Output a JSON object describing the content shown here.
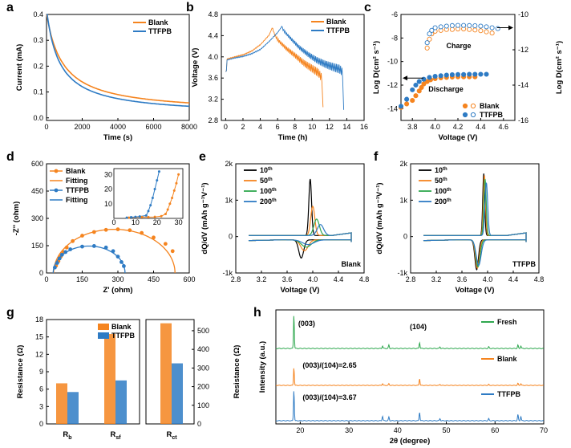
{
  "colors": {
    "blank": "#F5841F",
    "ttfpb": "#2E7BC4",
    "fresh": "#2FA84F",
    "black": "#000000"
  },
  "chart_data": [
    {
      "id": "a",
      "letter": "a",
      "type": "line",
      "xlabel": "Time (s)",
      "ylabel": "Current (mA)",
      "xlim": [
        0,
        8000
      ],
      "ylim": [
        -0.01,
        0.4
      ],
      "xticks": [
        0,
        2000,
        4000,
        6000,
        8000
      ],
      "yticks": [
        0.0,
        0.1,
        0.2,
        0.3,
        0.4
      ],
      "series": [
        {
          "name": "Blank",
          "color_key": "blank",
          "model": "decay",
          "params": {
            "a": 0.405,
            "tau": 900,
            "c": 0.018,
            "p": 0.62
          }
        },
        {
          "name": "TTFPB",
          "color_key": "ttfpb",
          "model": "decay",
          "params": {
            "a": 0.42,
            "tau": 700,
            "c": 0.008,
            "p": 0.6
          }
        }
      ],
      "legend": [
        "Blank",
        "TTFPB"
      ]
    },
    {
      "id": "b",
      "letter": "b",
      "type": "line",
      "xlabel": "Time (h)",
      "ylabel": "Voltage (V)",
      "xlim": [
        -0.5,
        16
      ],
      "ylim": [
        2.8,
        4.8
      ],
      "xticks": [
        0,
        2,
        4,
        6,
        8,
        10,
        12,
        14,
        16
      ],
      "yticks": [
        2.8,
        3.2,
        3.6,
        4.0,
        4.4,
        4.8
      ],
      "series": [
        {
          "name": "Blank",
          "color_key": "blank",
          "points": [
            [
              0,
              3.72
            ],
            [
              0.05,
              3.95
            ],
            [
              1,
              3.99
            ],
            [
              2,
              4.03
            ],
            [
              3,
              4.1
            ],
            [
              4,
              4.22
            ],
            [
              5,
              4.4
            ],
            [
              5.4,
              4.56
            ],
            [
              5.6,
              4.46
            ],
            [
              6,
              4.35
            ],
            [
              7,
              4.2
            ],
            [
              8,
              4.08
            ],
            [
              9,
              3.95
            ],
            [
              10,
              3.85
            ],
            [
              10.7,
              3.78
            ],
            [
              11.1,
              3.68
            ],
            [
              11.25,
              3.05
            ]
          ]
        },
        {
          "name": "TTFPB",
          "color_key": "ttfpb",
          "points": [
            [
              0,
              3.72
            ],
            [
              0.05,
              3.93
            ],
            [
              1,
              3.97
            ],
            [
              2,
              4.0
            ],
            [
              3,
              4.05
            ],
            [
              4,
              4.13
            ],
            [
              5,
              4.28
            ],
            [
              6,
              4.45
            ],
            [
              6.5,
              4.57
            ],
            [
              6.8,
              4.5
            ],
            [
              7.5,
              4.38
            ],
            [
              8.5,
              4.22
            ],
            [
              9.5,
              4.1
            ],
            [
              10.5,
              4.0
            ],
            [
              11.5,
              3.93
            ],
            [
              12.5,
              3.88
            ],
            [
              13.2,
              3.85
            ],
            [
              13.5,
              3.78
            ],
            [
              13.65,
              3.0
            ]
          ]
        }
      ],
      "legend": [
        "Blank",
        "TTFPB"
      ]
    },
    {
      "id": "c",
      "letter": "c",
      "type": "scatter",
      "xlabel": "Voltage (V)",
      "ylabel": "Log D(cm² s⁻¹)",
      "y2label": "Log D(cm² s⁻¹)",
      "xlim": [
        3.7,
        4.7
      ],
      "ylim": [
        -15,
        -6
      ],
      "y2lim": [
        -16,
        -10
      ],
      "xticks": [
        3.8,
        4.0,
        4.2,
        4.4,
        4.6
      ],
      "yticks": [
        -14,
        -12,
        -10,
        -8,
        -6
      ],
      "y2ticks": [
        -16,
        -14,
        -12,
        -10
      ],
      "annotations": [
        "Charge",
        "Discharge"
      ],
      "series": [
        {
          "name": "Blank",
          "color_key": "blank",
          "filled": false,
          "axis": "right",
          "points": [
            [
              3.93,
              -11.9
            ],
            [
              3.95,
              -11.4
            ],
            [
              3.97,
              -11.1
            ],
            [
              4.0,
              -10.95
            ],
            [
              4.05,
              -10.9
            ],
            [
              4.1,
              -10.85
            ],
            [
              4.15,
              -10.85
            ],
            [
              4.2,
              -10.82
            ],
            [
              4.25,
              -10.82
            ],
            [
              4.3,
              -10.85
            ],
            [
              4.35,
              -10.88
            ],
            [
              4.4,
              -10.92
            ],
            [
              4.45,
              -10.98
            ],
            [
              4.5,
              -11.05
            ]
          ]
        },
        {
          "name": "TTFPB",
          "color_key": "ttfpb",
          "filled": false,
          "axis": "right",
          "points": [
            [
              3.93,
              -11.6
            ],
            [
              3.95,
              -11.1
            ],
            [
              3.97,
              -10.9
            ],
            [
              4.0,
              -10.75
            ],
            [
              4.05,
              -10.7
            ],
            [
              4.1,
              -10.66
            ],
            [
              4.15,
              -10.63
            ],
            [
              4.2,
              -10.62
            ],
            [
              4.25,
              -10.62
            ],
            [
              4.3,
              -10.63
            ],
            [
              4.35,
              -10.64
            ],
            [
              4.4,
              -10.66
            ],
            [
              4.45,
              -10.7
            ],
            [
              4.5,
              -10.75
            ],
            [
              4.55,
              -10.8
            ]
          ]
        },
        {
          "name": "Blank",
          "color_key": "blank",
          "filled": true,
          "axis": "left",
          "points": [
            [
              3.7,
              -13.9
            ],
            [
              3.75,
              -13.6
            ],
            [
              3.8,
              -13.3
            ],
            [
              3.83,
              -12.9
            ],
            [
              3.86,
              -12.5
            ],
            [
              3.88,
              -12.2
            ],
            [
              3.9,
              -11.9
            ],
            [
              3.93,
              -11.7
            ],
            [
              3.96,
              -11.55
            ],
            [
              4.0,
              -11.45
            ],
            [
              4.05,
              -11.38
            ],
            [
              4.1,
              -11.35
            ],
            [
              4.15,
              -11.32
            ],
            [
              4.2,
              -11.3
            ],
            [
              4.25,
              -11.3
            ],
            [
              4.3,
              -11.3
            ],
            [
              4.35,
              -11.3
            ]
          ]
        },
        {
          "name": "TTFPB",
          "color_key": "ttfpb",
          "filled": true,
          "axis": "left",
          "points": [
            [
              3.7,
              -13.8
            ],
            [
              3.75,
              -13.2
            ],
            [
              3.8,
              -12.4
            ],
            [
              3.83,
              -12.0
            ],
            [
              3.86,
              -11.7
            ],
            [
              3.9,
              -11.5
            ],
            [
              3.95,
              -11.35
            ],
            [
              4.0,
              -11.25
            ],
            [
              4.05,
              -11.2
            ],
            [
              4.1,
              -11.15
            ],
            [
              4.15,
              -11.12
            ],
            [
              4.2,
              -11.1
            ],
            [
              4.25,
              -11.1
            ],
            [
              4.3,
              -11.08
            ],
            [
              4.35,
              -11.08
            ],
            [
              4.4,
              -11.08
            ],
            [
              4.45,
              -11.08
            ]
          ]
        }
      ],
      "legend": [
        "Blank",
        "TTFPB"
      ]
    },
    {
      "id": "d",
      "letter": "d",
      "type": "scatter",
      "xlabel": "Z' (ohm)",
      "ylabel": "-Z'' (ohm)",
      "xlim": [
        0,
        600
      ],
      "ylim": [
        0,
        600
      ],
      "xticks": [
        0,
        150,
        300,
        450,
        600
      ],
      "yticks": [
        0,
        150,
        300,
        450,
        600
      ],
      "series": [
        {
          "name": "Blank",
          "color_key": "blank",
          "kind": "points",
          "points": [
            [
              40,
              40
            ],
            [
              50,
              65
            ],
            [
              60,
              90
            ],
            [
              70,
              115
            ],
            [
              85,
              140
            ],
            [
              110,
              175
            ],
            [
              150,
              205
            ],
            [
              200,
              225
            ],
            [
              250,
              237
            ],
            [
              300,
              240
            ],
            [
              350,
              235
            ],
            [
              400,
              220
            ],
            [
              450,
              195
            ],
            [
              500,
              160
            ],
            [
              530,
              120
            ]
          ]
        },
        {
          "name": "Fitting",
          "color_key": "blank",
          "kind": "arc",
          "params": {
            "x0": 30,
            "x1": 540,
            "h": 240
          }
        },
        {
          "name": "TTFPB",
          "color_key": "ttfpb",
          "kind": "points",
          "points": [
            [
              35,
              30
            ],
            [
              45,
              55
            ],
            [
              55,
              80
            ],
            [
              65,
              100
            ],
            [
              80,
              115
            ],
            [
              100,
              130
            ],
            [
              150,
              145
            ],
            [
              200,
              148
            ],
            [
              250,
              140
            ],
            [
              280,
              120
            ],
            [
              300,
              90
            ],
            [
              315,
              60
            ],
            [
              325,
              38
            ]
          ]
        },
        {
          "name": "Fitting",
          "color_key": "ttfpb",
          "kind": "arc",
          "params": {
            "x0": 28,
            "x1": 330,
            "h": 148
          }
        }
      ],
      "inset": {
        "xticks": [
          0,
          10,
          20,
          30
        ],
        "yticks": [
          10,
          20,
          30
        ],
        "xlim": [
          0,
          32
        ],
        "ylim": [
          0,
          34
        ]
      },
      "legend": [
        "Blank",
        "Fitting",
        "TTFPB",
        "Fitting"
      ]
    },
    {
      "id": "e",
      "letter": "e",
      "type": "line",
      "xlabel": "Voltage (V)",
      "ylabel": "dQ/dV (mAh g⁻¹V⁻¹)",
      "xlim": [
        2.8,
        4.8
      ],
      "ylim": [
        -1000,
        2000
      ],
      "xticks": [
        2.8,
        3.2,
        3.6,
        4.0,
        4.4,
        4.8
      ],
      "yticks": [
        "-1k",
        "0",
        "1k",
        "2k"
      ],
      "label": "Blank",
      "legend": [
        "10th",
        "50th",
        "100th",
        "200th"
      ],
      "series": [
        {
          "name": "10th",
          "color_key": "black",
          "peak": 1550,
          "peakV": 3.96,
          "width": 0.03,
          "dis": -500,
          "disV": 3.82
        },
        {
          "name": "50th",
          "color_key": "blank",
          "peak": 800,
          "peakV": 4.0,
          "width": 0.045,
          "dis": -300,
          "disV": 3.87
        },
        {
          "name": "100th",
          "color_key": "fresh",
          "peak": 450,
          "peakV": 4.06,
          "width": 0.06,
          "dis": -200,
          "disV": 3.9
        },
        {
          "name": "200th",
          "color_key": "ttfpb",
          "peak": 300,
          "peakV": 4.12,
          "width": 0.07,
          "dis": -130,
          "disV": 3.93
        }
      ]
    },
    {
      "id": "f",
      "letter": "f",
      "type": "line",
      "xlabel": "Voltage (V)",
      "ylabel": "dQ/dV (mAh g⁻¹V⁻¹)",
      "xlim": [
        2.8,
        4.8
      ],
      "ylim": [
        -1000,
        2000
      ],
      "xticks": [
        2.8,
        3.2,
        3.6,
        4.0,
        4.4,
        4.8
      ],
      "yticks": [
        "-1k",
        "0",
        "1k",
        "2k"
      ],
      "label": "TTFPB",
      "legend": [
        "10th",
        "50th",
        "100th",
        "200th"
      ],
      "series": [
        {
          "name": "10th",
          "color_key": "black",
          "peak": 1700,
          "peakV": 3.94,
          "width": 0.022,
          "dis": -820,
          "disV": 3.83
        },
        {
          "name": "50th",
          "color_key": "blank",
          "peak": 1650,
          "peakV": 3.95,
          "width": 0.024,
          "dis": -780,
          "disV": 3.84
        },
        {
          "name": "100th",
          "color_key": "fresh",
          "peak": 1550,
          "peakV": 3.96,
          "width": 0.026,
          "dis": -740,
          "disV": 3.85
        },
        {
          "name": "200th",
          "color_key": "ttfpb",
          "peak": 1450,
          "peakV": 3.98,
          "width": 0.03,
          "dis": -700,
          "disV": 3.86
        }
      ]
    },
    {
      "id": "g",
      "letter": "g",
      "type": "bar",
      "ylabel": "Resistance (Ω)",
      "y2label": "Resistance (Ω)",
      "categories": [
        "Rb",
        "Rsf",
        "Rct"
      ],
      "category_labels": [
        {
          "main": "R",
          "sub": "b"
        },
        {
          "main": "R",
          "sub": "sf"
        },
        {
          "main": "R",
          "sub": "ct"
        }
      ],
      "ylim": [
        0,
        18
      ],
      "yticks": [
        0,
        3,
        6,
        9,
        12,
        15,
        18
      ],
      "y2lim": [
        0,
        560
      ],
      "y2ticks": [
        0,
        100,
        200,
        300,
        400,
        500
      ],
      "series": [
        {
          "name": "Blank",
          "color_key": "blank",
          "values": [
            7.0,
            15.5,
            540
          ]
        },
        {
          "name": "TTFPB",
          "color_key": "ttfpb",
          "values": [
            5.5,
            7.5,
            325
          ]
        }
      ],
      "legend": [
        "Blank",
        "TTFPB"
      ]
    },
    {
      "id": "h",
      "letter": "h",
      "type": "line",
      "xlabel": "2θ (degree)",
      "ylabel": "Intensity (a.u.)",
      "xlim": [
        15,
        70
      ],
      "xticks": [
        20,
        30,
        40,
        50,
        60,
        70
      ],
      "annotations": [
        "(003)",
        "(104)",
        "(003)/(104)=2.65",
        "(003)/(104)=3.67"
      ],
      "series": [
        {
          "name": "Fresh",
          "color_key": "fresh",
          "peaks": [
            [
              18.7,
              1.0
            ],
            [
              36.9,
              0.08
            ],
            [
              38.2,
              0.1
            ],
            [
              44.5,
              0.18
            ],
            [
              48.7,
              0.05
            ],
            [
              58.7,
              0.05
            ],
            [
              64.7,
              0.1
            ],
            [
              65.3,
              0.08
            ]
          ]
        },
        {
          "name": "Blank",
          "color_key": "blank",
          "peaks": [
            [
              18.7,
              1.0
            ],
            [
              36.9,
              0.1
            ],
            [
              38.2,
              0.1
            ],
            [
              44.5,
              0.38
            ],
            [
              48.7,
              0.06
            ],
            [
              58.7,
              0.06
            ],
            [
              64.7,
              0.12
            ],
            [
              65.3,
              0.1
            ]
          ]
        },
        {
          "name": "TTFPB",
          "color_key": "ttfpb",
          "peaks": [
            [
              18.7,
              1.0
            ],
            [
              36.9,
              0.15
            ],
            [
              38.2,
              0.12
            ],
            [
              44.5,
              0.28
            ],
            [
              48.7,
              0.07
            ],
            [
              58.7,
              0.07
            ],
            [
              64.7,
              0.2
            ],
            [
              65.3,
              0.14
            ]
          ]
        }
      ],
      "legend": [
        "Fresh",
        "Blank",
        "TTFPB"
      ]
    }
  ]
}
